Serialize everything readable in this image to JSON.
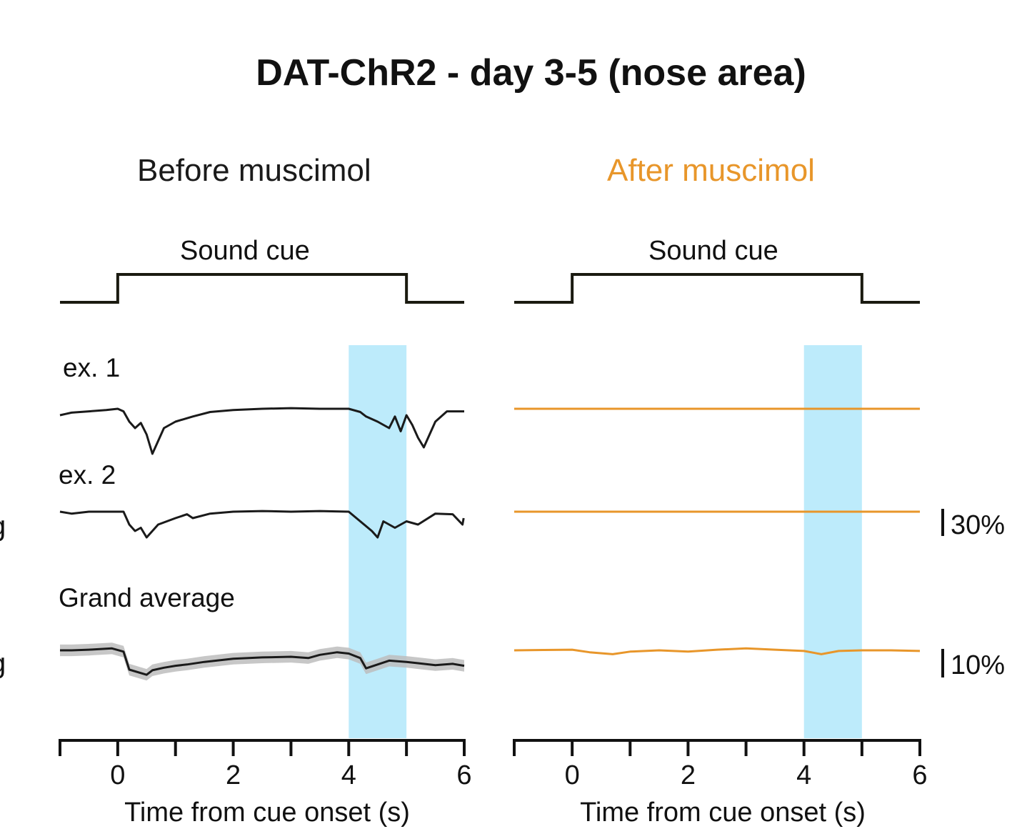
{
  "figure": {
    "title": "DAT-ChR2 - day 3-5 (nose area)",
    "colors": {
      "before": "#1a1a1a",
      "after": "#E8962A",
      "stim": "#BDEBFB",
      "band": "#BDBDBD"
    }
  },
  "panels": {
    "before": {
      "title": "Before muscimol",
      "cue_label": "Sound cue"
    },
    "after": {
      "title": "After muscimol",
      "cue_label": "Sound cue"
    }
  },
  "labels": {
    "ex1": "ex. 1",
    "ex2": "ex. 2",
    "grand": "Grand average",
    "cut_glyph": "g"
  },
  "scale_bars": {
    "traces": "30%",
    "average": "10%"
  },
  "chart_data": [
    {
      "type": "line",
      "title": "Before muscimol",
      "xlabel": "Time from cue onset (s)",
      "ylabel": "",
      "xlim": [
        -1,
        6
      ],
      "x_ticks": [
        -1,
        0,
        1,
        2,
        3,
        4,
        5,
        6
      ],
      "x_tick_labels": [
        "0",
        "2",
        "4",
        "6"
      ],
      "cue": {
        "label": "Sound cue",
        "onset": 0,
        "offset": 5
      },
      "stim_window": [
        4,
        5
      ],
      "series": [
        {
          "x": [
            -1,
            -0.9,
            -0.8,
            -0.5,
            -0.2,
            0.0,
            0.1,
            0.2,
            0.3,
            0.4,
            0.5,
            0.6,
            0.7,
            0.8,
            1.0,
            1.3,
            1.6,
            2.0,
            2.5,
            3.0,
            3.5,
            4.0,
            4.2,
            4.3,
            4.5,
            4.7,
            4.8,
            4.9,
            5.0,
            5.1,
            5.2,
            5.3,
            5.5,
            5.7,
            6.0
          ],
          "y": [
            -1,
            -0.8,
            -0.6,
            -0.4,
            -0.2,
            0,
            -0.4,
            -2,
            -3,
            -2.2,
            -4,
            -7,
            -5,
            -3,
            -2,
            -1.2,
            -0.5,
            -0.2,
            0,
            0.1,
            0,
            0,
            -0.5,
            -1.2,
            -2,
            -3,
            -1.2,
            -3.5,
            -1,
            -2.5,
            -4.5,
            -6,
            -2,
            -0.4,
            -0.4
          ]
        },
        {
          "x": [
            -1,
            -0.8,
            -0.5,
            -0.2,
            0.1,
            0.2,
            0.3,
            0.4,
            0.5,
            0.6,
            0.7,
            1.0,
            1.2,
            1.3,
            1.6,
            2.0,
            2.5,
            3.0,
            3.5,
            4.0,
            4.2,
            4.4,
            4.5,
            4.6,
            4.8,
            5.0,
            5.2,
            5.5,
            5.8,
            5.97,
            5.99
          ],
          "y": [
            0,
            -0.3,
            0,
            0,
            0,
            -2,
            -3,
            -2.5,
            -4,
            -3,
            -2,
            -1,
            -0.4,
            -1,
            -0.3,
            0,
            0.1,
            0,
            0.1,
            0,
            -1.5,
            -3,
            -4,
            -1.5,
            -2.5,
            -1.5,
            -2,
            -0.3,
            -0.4,
            -2,
            -1
          ]
        },
        {
          "x": [
            -1,
            -0.8,
            -0.5,
            -0.1,
            0.1,
            0.2,
            0.5,
            0.6,
            0.8,
            1.0,
            1.2,
            1.5,
            2.0,
            2.5,
            3.0,
            3.3,
            3.5,
            3.8,
            4.0,
            4.2,
            4.3,
            4.5,
            4.7,
            5.0,
            5.2,
            5.5,
            5.8,
            6.0
          ],
          "y": [
            0,
            0,
            0.1,
            0.3,
            -0.2,
            -3,
            -3.8,
            -3.1,
            -2.7,
            -2.4,
            -2.2,
            -1.8,
            -1.3,
            -1.1,
            -1,
            -1.2,
            -0.7,
            -0.3,
            -0.5,
            -1.2,
            -2.8,
            -2.2,
            -1.6,
            -1.8,
            -2,
            -2.3,
            -2.1,
            -2.4
          ]
        }
      ]
    },
    {
      "type": "line",
      "title": "After muscimol",
      "xlabel": "Time from cue onset (s)",
      "ylabel": "",
      "xlim": [
        -1,
        6
      ],
      "x_ticks": [
        -1,
        0,
        1,
        2,
        3,
        4,
        5,
        6
      ],
      "x_tick_labels": [
        "0",
        "2",
        "4",
        "6"
      ],
      "cue": {
        "label": "Sound cue",
        "onset": 0,
        "offset": 5
      },
      "stim_window": [
        4,
        5
      ],
      "series": [
        {
          "x": [
            -1,
            0,
            1,
            2,
            3,
            4,
            5,
            6
          ],
          "y": [
            0,
            0,
            0,
            0,
            0,
            0,
            0,
            0
          ]
        },
        {
          "x": [
            -1,
            0,
            1,
            2,
            3,
            4,
            5,
            6
          ],
          "y": [
            0,
            0,
            0,
            0,
            0,
            0,
            0,
            0
          ]
        },
        {
          "x": [
            -1,
            -0.5,
            0,
            0.3,
            0.7,
            1.0,
            1.5,
            2.0,
            2.5,
            3.0,
            3.5,
            4.0,
            4.3,
            4.6,
            5.0,
            5.5,
            6.0
          ],
          "y": [
            0,
            0.05,
            0.1,
            -0.3,
            -0.6,
            -0.2,
            0,
            -0.2,
            0.1,
            0.3,
            0.1,
            -0.1,
            -0.6,
            -0.1,
            0,
            0,
            -0.1
          ]
        }
      ]
    }
  ]
}
